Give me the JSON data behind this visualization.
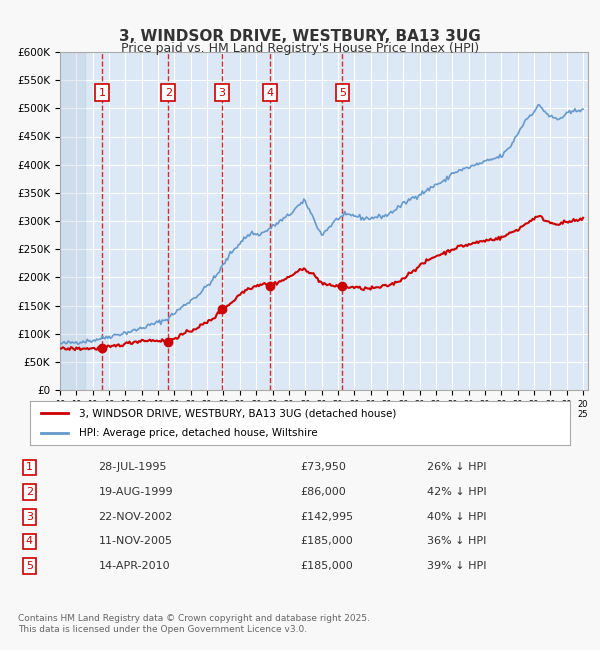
{
  "title": "3, WINDSOR DRIVE, WESTBURY, BA13 3UG",
  "subtitle": "Price paid vs. HM Land Registry's House Price Index (HPI)",
  "bg_color": "#f0f4f8",
  "plot_bg_color": "#dce8f5",
  "hatch_color": "#c8d8e8",
  "grid_color": "#ffffff",
  "red_line_color": "#cc0000",
  "blue_line_color": "#6699cc",
  "sale_marker_color": "#cc0000",
  "dashed_line_color": "#cc0000",
  "x_start_year": 1993,
  "x_end_year": 2025,
  "y_min": 0,
  "y_max": 600000,
  "y_tick_step": 50000,
  "sales": [
    {
      "label": "1",
      "date": 1995.57,
      "price": 73950
    },
    {
      "label": "2",
      "date": 1999.63,
      "price": 86000
    },
    {
      "label": "3",
      "date": 2002.9,
      "price": 142995
    },
    {
      "label": "4",
      "date": 2005.87,
      "price": 185000
    },
    {
      "label": "5",
      "date": 2010.28,
      "price": 185000
    }
  ],
  "legend_red": "3, WINDSOR DRIVE, WESTBURY, BA13 3UG (detached house)",
  "legend_blue": "HPI: Average price, detached house, Wiltshire",
  "table_rows": [
    [
      "1",
      "28-JUL-1995",
      "£73,950",
      "26% ↓ HPI"
    ],
    [
      "2",
      "19-AUG-1999",
      "£86,000",
      "42% ↓ HPI"
    ],
    [
      "3",
      "22-NOV-2002",
      "£142,995",
      "40% ↓ HPI"
    ],
    [
      "4",
      "11-NOV-2005",
      "£185,000",
      "36% ↓ HPI"
    ],
    [
      "5",
      "14-APR-2010",
      "£185,000",
      "39% ↓ HPI"
    ]
  ],
  "footer": "Contains HM Land Registry data © Crown copyright and database right 2025.\nThis data is licensed under the Open Government Licence v3.0."
}
